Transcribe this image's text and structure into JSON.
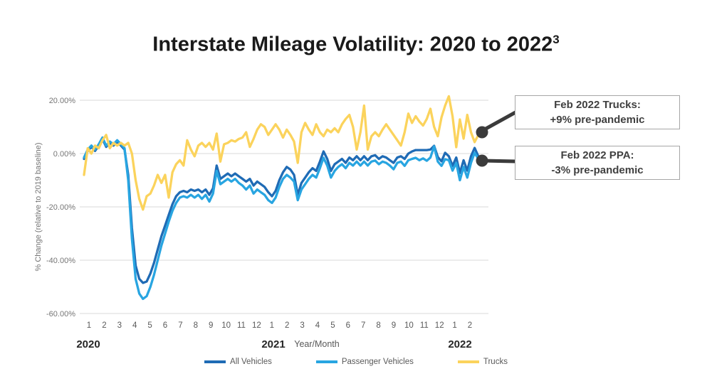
{
  "title": {
    "text": "Interstate Mileage Volatility: 2020 to 2022",
    "superscript": "3"
  },
  "y_axis": {
    "label": "% Change (relative to 2019 baseline)",
    "ticks": [
      "20.00%",
      "0.00%",
      "-20.00%",
      "-40.00%",
      "-60.00%"
    ]
  },
  "x_axis": {
    "label": "Year/Month",
    "years": [
      "2020",
      "2021",
      "2022"
    ],
    "months": [
      "1",
      "2",
      "3",
      "4",
      "5",
      "6",
      "7",
      "8",
      "9",
      "10",
      "11",
      "12",
      "1",
      "2",
      "3",
      "4",
      "5",
      "6",
      "7",
      "8",
      "9",
      "10",
      "11",
      "12",
      "1",
      "2"
    ]
  },
  "legend": [
    {
      "name": "All Vehicles",
      "color": "#1f6bb5"
    },
    {
      "name": "Passenger Vehicles",
      "color": "#28a5e1"
    },
    {
      "name": "Trucks",
      "color": "#fbd35c"
    }
  ],
  "callouts": [
    {
      "line1": "Feb 2022 Trucks:",
      "line2": "+9% pre-pandemic"
    },
    {
      "line1": "Feb 2022 PPA:",
      "line2": "-3% pre-pandemic"
    }
  ],
  "chart_data": {
    "type": "line",
    "title": "Interstate Mileage Volatility: 2020 to 2022",
    "xlabel": "Year/Month",
    "ylabel": "% Change (relative to 2019 baseline)",
    "x_unit": "weekly observations, Jan 2020 through Feb 2022",
    "ylim": [
      -60,
      20
    ],
    "grid": "horizontal",
    "legend_position": "bottom",
    "annotations": [
      {
        "text": "Feb 2022 Trucks: +9% pre-pandemic",
        "series": "Trucks",
        "x": "Feb 2022",
        "value": 9
      },
      {
        "text": "Feb 2022 PPA: -3% pre-pandemic",
        "series": "Passenger Vehicles",
        "x": "Feb 2022",
        "value": -3
      }
    ],
    "series": [
      {
        "name": "All Vehicles",
        "color": "#1f6bb5",
        "values": [
          -2,
          1,
          2.5,
          1,
          3,
          5.5,
          2.5,
          4,
          3,
          4.5,
          3,
          1.5,
          -8,
          -28,
          -42,
          -47,
          -48.5,
          -48,
          -45,
          -41,
          -36,
          -31,
          -27,
          -23,
          -19,
          -16,
          -14.5,
          -14,
          -14.5,
          -13.5,
          -14,
          -13.5,
          -14.5,
          -13.5,
          -15.5,
          -13,
          -4.5,
          -9.5,
          -8.5,
          -7.5,
          -8.5,
          -7.5,
          -8.5,
          -9.5,
          -10.5,
          -9.5,
          -12,
          -10.5,
          -11.5,
          -12.5,
          -14.5,
          -16,
          -14,
          -10,
          -7,
          -5,
          -6,
          -8,
          -15.5,
          -11,
          -9,
          -7,
          -5.5,
          -6.5,
          -3,
          0.8,
          -2,
          -6.5,
          -4,
          -3,
          -2,
          -3.5,
          -1.5,
          -2.5,
          -1,
          -2.5,
          -1,
          -2.5,
          -1,
          -0.6,
          -2,
          -1,
          -1.5,
          -2.5,
          -3.5,
          -1.5,
          -1,
          -2,
          0,
          0.8,
          1.3,
          1.3,
          1.3,
          1.3,
          1.5,
          2.9,
          -1.3,
          -2.9,
          0.3,
          -1,
          -4.6,
          -1.5,
          -7.3,
          -2.5,
          -6.4,
          -1,
          2.1,
          -1,
          -2.4
        ]
      },
      {
        "name": "Passenger Vehicles",
        "color": "#28a5e1",
        "values": [
          -1.5,
          1.5,
          3,
          1.5,
          3.5,
          6,
          3,
          4.5,
          3.5,
          5,
          3.5,
          2,
          -10,
          -32,
          -47,
          -52.5,
          -54.5,
          -53.5,
          -50,
          -45.5,
          -40,
          -34.5,
          -30,
          -25.5,
          -21.5,
          -18.5,
          -16.5,
          -16,
          -16.5,
          -15.5,
          -16.5,
          -15.5,
          -17,
          -15.5,
          -18,
          -15,
          -6.5,
          -11.5,
          -10.5,
          -9.5,
          -10.5,
          -9.5,
          -11,
          -12,
          -13.5,
          -12,
          -15,
          -13.5,
          -14.5,
          -15.5,
          -17.5,
          -18.5,
          -16.5,
          -12.5,
          -9.5,
          -8,
          -9,
          -10.5,
          -17.5,
          -13.5,
          -11.5,
          -9.5,
          -8,
          -9,
          -5.5,
          -1.6,
          -4.5,
          -9,
          -6.5,
          -5,
          -4,
          -5.5,
          -3.5,
          -4.5,
          -3,
          -4.5,
          -3,
          -4.5,
          -3,
          -2.6,
          -4,
          -3,
          -3.5,
          -4.5,
          -5.9,
          -3.5,
          -3,
          -4.6,
          -2.5,
          -2,
          -1.6,
          -2.5,
          -1.8,
          -2.7,
          -1.5,
          2.7,
          -3,
          -4.6,
          -2.1,
          -2.5,
          -6.4,
          -3.5,
          -10,
          -5,
          -9,
          -3.5,
          0.3,
          -2,
          -3.2
        ]
      },
      {
        "name": "Trucks",
        "color": "#fbd35c",
        "values": [
          -8,
          2,
          0,
          3,
          2,
          5,
          7,
          2,
          4,
          3,
          4,
          3,
          4,
          0,
          -10,
          -17,
          -21,
          -16,
          -15,
          -12,
          -8,
          -11,
          -8,
          -16.5,
          -7,
          -4,
          -2.5,
          -4.5,
          5,
          1.5,
          -1,
          3,
          4,
          2.5,
          4,
          1.5,
          7.5,
          -3,
          3.5,
          4,
          5,
          4.5,
          5.5,
          6,
          8,
          2.5,
          5.5,
          9,
          11,
          10,
          7,
          9,
          11,
          9,
          6,
          9,
          7,
          4.5,
          -3.5,
          8,
          11.5,
          9,
          7,
          11,
          8,
          6.5,
          9,
          8,
          9.5,
          8,
          11,
          13,
          14.5,
          10,
          1.5,
          8,
          18,
          1.5,
          6.5,
          8,
          6.5,
          9,
          11,
          9,
          7,
          5,
          3,
          8,
          15,
          11.5,
          14,
          12,
          10.5,
          13,
          16.8,
          10,
          6.5,
          13.6,
          18,
          21.5,
          14,
          2.4,
          12.8,
          5.6,
          14.5,
          8,
          4.3,
          7,
          9
        ]
      }
    ]
  }
}
